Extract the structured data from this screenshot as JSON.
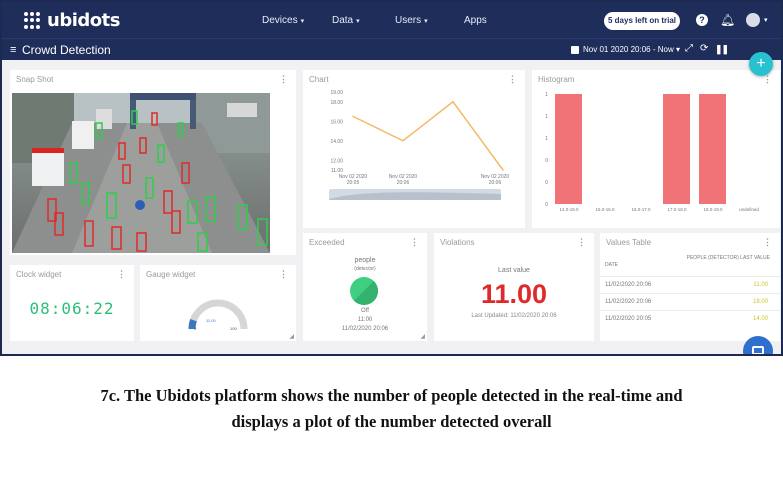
{
  "app": {
    "brand": "ubidots",
    "dashboard_title": "Crowd Detection"
  },
  "nav": {
    "items": [
      {
        "label": "Devices",
        "caret": "▾"
      },
      {
        "label": "Data",
        "caret": "▾"
      },
      {
        "label": "Users",
        "caret": "▾"
      },
      {
        "label": "Apps",
        "caret": ""
      }
    ]
  },
  "header": {
    "trial_badge": "5 days left on trial",
    "date_range": "Nov 01 2020 20:06 - Now ▾",
    "help_glyph": "?",
    "bell_glyph": "🔔︎",
    "menu_glyph": "≡",
    "add_glyph": "+"
  },
  "widgets": {
    "snapshot": {
      "title": "Snap Shot"
    },
    "chart": {
      "title": "Chart"
    },
    "histogram": {
      "title": "Histogram"
    },
    "exceeded": {
      "title": "Exceeded",
      "variable": "people",
      "device": "(detector)",
      "state": "Off",
      "time": "11:00",
      "date": "11/02/2020 20:06",
      "color": "#3fcf83"
    },
    "violations": {
      "title": "Violations",
      "label": "Last value",
      "value": "11.00",
      "updated": "Last Updated: 11/02/2020 20:06",
      "color": "#e02a2a"
    },
    "values_table": {
      "title": "Values Table",
      "header_date": "DATE",
      "header_value": "PEOPLE (DETECTOR) LAST VALUE",
      "rows": [
        {
          "date": "11/02/2020 20:06",
          "value": "11.00"
        },
        {
          "date": "11/02/2020 20:06",
          "value": "18.00"
        },
        {
          "date": "11/02/2020 20:05",
          "value": "14.00"
        }
      ]
    },
    "clock": {
      "title": "Clock widget",
      "time": "08:06:22",
      "color": "#2cbf78"
    },
    "gauge": {
      "title": "Gauge widget",
      "min": "0",
      "max": "100",
      "value_text": "11.00",
      "value": 11
    }
  },
  "chart_data": [
    {
      "type": "line",
      "x": [
        "Nov 02 2020 20:05",
        "Nov 02 2020 20:06",
        "Nov 02 2020 20:06",
        "Nov 02 2020 20:06"
      ],
      "x_tick_labels": [
        "Nov 02 2020\n20:05",
        "Nov 02 2020\n20:06",
        "Nov 02 2020\n20:06"
      ],
      "values": [
        16.5,
        14.0,
        18.0,
        11.0
      ],
      "y_ticks": [
        "11.00",
        "12.00",
        "14.00",
        "16.00",
        "18.00",
        "19.00"
      ],
      "ylim": [
        11,
        19
      ],
      "color": "#f5b96b",
      "grid": false
    },
    {
      "type": "bar",
      "categories": [
        "14.0-15.0",
        "15.0-16.0",
        "16.0-17.0",
        "17.0-18.0",
        "18.0-19.0",
        "undefined"
      ],
      "values": [
        1,
        0,
        0,
        1,
        1,
        0
      ],
      "y_ticks": [
        "0",
        "0",
        "0",
        "1",
        "1",
        "1"
      ],
      "ylim": [
        0,
        1
      ],
      "color": "#f07377"
    }
  ],
  "caption": {
    "line1": "7c. The Ubidots platform shows the number of people detected in the real-time and",
    "line2": "displays a plot of the number detected overall"
  }
}
